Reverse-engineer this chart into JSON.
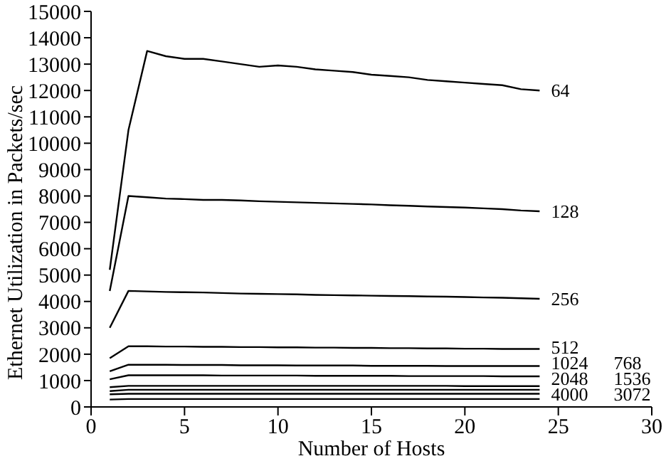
{
  "chart_data": {
    "type": "line",
    "xlabel": "Number of Hosts",
    "ylabel": "Ethernet Utilization in Packets/sec",
    "x": [
      1,
      2,
      3,
      4,
      5,
      6,
      7,
      8,
      9,
      10,
      11,
      12,
      13,
      14,
      15,
      16,
      17,
      18,
      19,
      20,
      21,
      22,
      23,
      24
    ],
    "xlim": [
      0,
      30
    ],
    "xticks": [
      0,
      5,
      10,
      15,
      20,
      25,
      30
    ],
    "ylim": [
      0,
      15000
    ],
    "yticks": [
      0,
      1000,
      2000,
      3000,
      4000,
      5000,
      6000,
      7000,
      8000,
      9000,
      10000,
      11000,
      12000,
      13000,
      14000,
      15000
    ],
    "grid": false,
    "legend": false,
    "marker": "none",
    "line_style": "solid",
    "series": [
      {
        "name": "64",
        "color": "#000000",
        "values": [
          5200,
          10500,
          13500,
          13300,
          13200,
          13200,
          13100,
          13000,
          12900,
          12950,
          12900,
          12800,
          12750,
          12700,
          12600,
          12550,
          12500,
          12400,
          12350,
          12300,
          12250,
          12200,
          12050,
          12000
        ]
      },
      {
        "name": "128",
        "color": "#000000",
        "values": [
          4400,
          8000,
          7950,
          7900,
          7880,
          7850,
          7850,
          7830,
          7800,
          7780,
          7760,
          7740,
          7720,
          7700,
          7680,
          7650,
          7630,
          7600,
          7580,
          7560,
          7530,
          7500,
          7450,
          7420
        ]
      },
      {
        "name": "256",
        "color": "#000000",
        "values": [
          3000,
          4400,
          4380,
          4360,
          4350,
          4340,
          4320,
          4300,
          4290,
          4280,
          4270,
          4250,
          4240,
          4230,
          4220,
          4210,
          4200,
          4190,
          4180,
          4170,
          4150,
          4140,
          4120,
          4100
        ]
      },
      {
        "name": "512",
        "color": "#000000",
        "values": [
          1850,
          2300,
          2300,
          2290,
          2290,
          2280,
          2280,
          2270,
          2270,
          2260,
          2260,
          2250,
          2250,
          2240,
          2240,
          2230,
          2230,
          2220,
          2220,
          2210,
          2210,
          2200,
          2200,
          2200
        ]
      },
      {
        "name": "768",
        "color": "#000000",
        "values": [
          1350,
          1600,
          1600,
          1600,
          1590,
          1590,
          1590,
          1580,
          1580,
          1580,
          1570,
          1570,
          1570,
          1570,
          1560,
          1560,
          1560,
          1560,
          1550,
          1550,
          1550,
          1550,
          1550,
          1550
        ]
      },
      {
        "name": "1024",
        "color": "#000000",
        "values": [
          1050,
          1200,
          1200,
          1200,
          1200,
          1200,
          1190,
          1190,
          1190,
          1190,
          1190,
          1180,
          1180,
          1180,
          1180,
          1180,
          1170,
          1170,
          1170,
          1170,
          1170,
          1160,
          1160,
          1160
        ]
      },
      {
        "name": "1536",
        "color": "#000000",
        "values": [
          750,
          800,
          800,
          800,
          800,
          800,
          800,
          800,
          800,
          800,
          800,
          800,
          800,
          800,
          800,
          800,
          800,
          800,
          800,
          790,
          790,
          790,
          790,
          790
        ]
      },
      {
        "name": "2048",
        "color": "#000000",
        "values": [
          600,
          650,
          650,
          650,
          650,
          650,
          650,
          650,
          650,
          650,
          650,
          650,
          650,
          650,
          650,
          650,
          650,
          650,
          650,
          650,
          650,
          650,
          650,
          650
        ]
      },
      {
        "name": "3072",
        "color": "#000000",
        "values": [
          480,
          500,
          500,
          500,
          500,
          500,
          500,
          500,
          500,
          500,
          500,
          500,
          500,
          500,
          500,
          500,
          500,
          500,
          500,
          500,
          500,
          500,
          500,
          500
        ]
      },
      {
        "name": "4000",
        "color": "#000000",
        "values": [
          280,
          300,
          300,
          300,
          300,
          300,
          300,
          300,
          300,
          300,
          300,
          300,
          300,
          300,
          300,
          300,
          300,
          300,
          300,
          300,
          300,
          300,
          300,
          300
        ]
      }
    ]
  }
}
